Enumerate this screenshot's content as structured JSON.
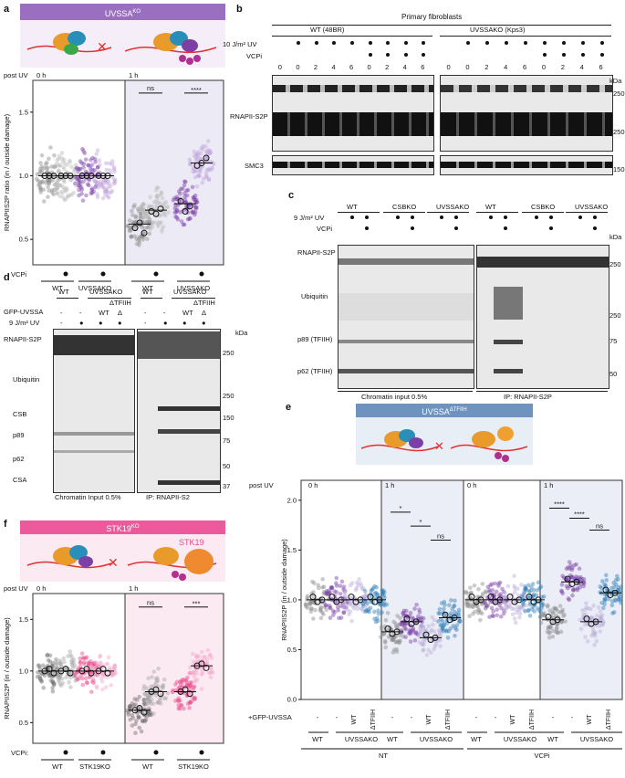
{
  "panels": {
    "a": "a",
    "b": "b",
    "c": "c",
    "d": "d",
    "e": "e",
    "f": "f"
  },
  "a": {
    "header": "UVSSA",
    "header_sup": "KO",
    "time0": "0 h",
    "time1": "1 h",
    "post": "post UV",
    "ylabel": "RNAPIIS2P ratio (in / outside damage)",
    "yticks": [
      "0.5",
      "1.0",
      "1.5"
    ],
    "sig": [
      "ns",
      "****"
    ],
    "row_label": "VCPi",
    "groups": [
      "WT",
      "UVSSAKO",
      "WT",
      "UVSSAKO"
    ],
    "colors": {
      "wt": "#8c8c8c",
      "ko": "#7b3fa6",
      "kolight": "#c2a3dc",
      "bg1h": "#ecebf5",
      "header": "#9b6fc0"
    }
  },
  "b": {
    "title": "Primary fibroblasts",
    "wt_label": "WT (48BR)",
    "ko_label": "UVSSAKO (Kps3)",
    "uv_label": "10 J/m² UV",
    "vcpi_label": "VCPi",
    "timepoints": [
      "0",
      "0",
      "2",
      "4",
      "6",
      "0",
      "2",
      "4",
      "6",
      "0",
      "0",
      "2",
      "4",
      "6",
      "0",
      "2",
      "4",
      "6"
    ],
    "bands": [
      "RNAPII-S2P",
      "SMC3"
    ],
    "kda": [
      "kDa",
      "250",
      "250",
      "150"
    ]
  },
  "c": {
    "lanes": [
      "WT",
      "CSBKO",
      "UVSSAKO",
      "WT",
      "CSBKO",
      "UVSSAKO"
    ],
    "uv_label": "9 J/m² UV",
    "vcpi_label": "VCPi",
    "bands": [
      "RNAPII-S2P",
      "Ubiquitin",
      "p89 (TFIIH)",
      "p62 (TFIIH)"
    ],
    "kda": [
      "kDa",
      "250",
      "250",
      "75",
      "50"
    ],
    "foot": [
      "Chromatin input 0.5%",
      "IP: RNAPII-S2P"
    ]
  },
  "d": {
    "groups": [
      "WT",
      "UVSSAKO",
      "WT",
      "UVSSAKO"
    ],
    "delta": [
      "ΔTFIIH",
      "ΔTFIIH"
    ],
    "gfp_label": "GFP-UVSSA",
    "uv_label": "9 J/m² UV",
    "bands": [
      "RNAPII-S2P",
      "Ubiquitin",
      "CSB",
      "p89",
      "p62",
      "CSA"
    ],
    "kda": [
      "kDa",
      "250",
      "250",
      "150",
      "75",
      "50",
      "37"
    ],
    "foot": [
      "Chromatin Input 0.5%",
      "IP: RNAPII-S2"
    ],
    "gfp_marks": [
      "-",
      "-",
      "WT",
      "Δ",
      "-",
      "-",
      "WT",
      "Δ"
    ],
    "uv_marks": [
      "-",
      "●",
      "●",
      "●",
      "-",
      "●",
      "●",
      "●"
    ]
  },
  "e": {
    "header": "UVSSA",
    "header_sup": "ΔTFIIH",
    "ylabel": "RNAPIIS2P (in / outside damage)",
    "yticks": [
      "0.0",
      "0.5",
      "1.0",
      "1.5",
      "2.0"
    ],
    "post": "post UV",
    "times": [
      "0 h",
      "1 h",
      "0 h",
      "1 h"
    ],
    "sig": [
      "*",
      "*",
      "ns",
      "****",
      "****",
      "ns"
    ],
    "gfp_row": "+GFP-UVSSA",
    "lane_marks": [
      "-",
      "-",
      "WT",
      "ΔTFIIH"
    ],
    "groups": [
      "WT",
      "UVSSAKO"
    ],
    "treat": [
      "NT",
      "VCPi"
    ],
    "colors": {
      "wt": "#8c8c8c",
      "ko": "#7b3fa6",
      "wtres": "#b9aed8",
      "dtf": "#2f7fb8",
      "header": "#6f93bf"
    }
  },
  "f": {
    "header": "STK19",
    "header_sup": "KO",
    "stk_label": "STK19",
    "time0": "0 h",
    "time1": "1 h",
    "post": "post UV",
    "ylabel": "RNAPIIS2P (in / outside damage)",
    "yticks": [
      "0.5",
      "1.0",
      "1.5"
    ],
    "sig": [
      "ns",
      "***"
    ],
    "row_label": "VCPi:",
    "groups": [
      "WT",
      "STK19KO",
      "WT",
      "STK19KO"
    ],
    "colors": {
      "wt": "#6e6e6e",
      "ko": "#e8488a",
      "kolight": "#f3a8c9",
      "header": "#ec5a9b"
    }
  }
}
